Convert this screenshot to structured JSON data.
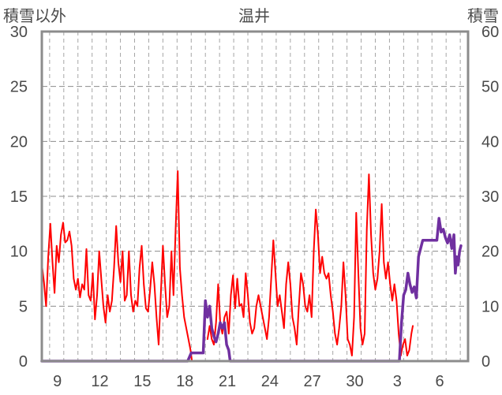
{
  "chart_data": {
    "type": "line",
    "title": "温井",
    "y_left_label": "積雪以外",
    "y_right_label": "積雪",
    "ylim_left": [
      0,
      30
    ],
    "ylim_right": [
      0,
      60
    ],
    "y_left_ticks": [
      "0",
      "5",
      "10",
      "15",
      "20",
      "25",
      "30"
    ],
    "y_right_ticks": [
      "0",
      "10",
      "20",
      "30",
      "40",
      "50",
      "60"
    ],
    "x_tick_labels": [
      "9",
      "12",
      "15",
      "18",
      "21",
      "24",
      "27",
      "30",
      "3",
      "6"
    ],
    "x_tick_positions_day": [
      9,
      12,
      15,
      18,
      21,
      24,
      27,
      30,
      33,
      36
    ],
    "x_range_day": [
      7.9,
      38.0
    ],
    "x_gridlines_day": [
      8.45,
      9.45,
      10.45,
      11.45,
      12.45,
      13.45,
      14.45,
      15.45,
      16.45,
      17.45,
      18.45,
      19.45,
      20.45,
      21.45,
      22.45,
      23.45,
      24.45,
      25.45,
      26.45,
      27.45,
      28.45,
      29.45,
      30.45,
      31.45,
      32.45,
      33.45,
      34.45,
      35.45,
      36.45,
      37.45
    ],
    "grid": true,
    "series": [
      {
        "axis": "left",
        "color": "#ff0000",
        "points": [
          [
            7.9,
            8.8
          ],
          [
            8.05,
            7.2
          ],
          [
            8.2,
            5.0
          ],
          [
            8.35,
            9.5
          ],
          [
            8.5,
            12.5
          ],
          [
            8.65,
            9.0
          ],
          [
            8.8,
            6.2
          ],
          [
            8.95,
            10.5
          ],
          [
            9.1,
            9.0
          ],
          [
            9.25,
            11.5
          ],
          [
            9.4,
            12.6
          ],
          [
            9.55,
            10.8
          ],
          [
            9.7,
            11.0
          ],
          [
            9.85,
            11.8
          ],
          [
            10.0,
            10.5
          ],
          [
            10.15,
            7.5
          ],
          [
            10.3,
            6.5
          ],
          [
            10.45,
            7.5
          ],
          [
            10.6,
            5.8
          ],
          [
            10.75,
            7.0
          ],
          [
            10.9,
            6.5
          ],
          [
            11.05,
            10.2
          ],
          [
            11.2,
            6.0
          ],
          [
            11.35,
            5.5
          ],
          [
            11.5,
            8.0
          ],
          [
            11.65,
            3.8
          ],
          [
            11.8,
            6.0
          ],
          [
            11.95,
            10.0
          ],
          [
            12.1,
            7.5
          ],
          [
            12.25,
            5.0
          ],
          [
            12.4,
            3.5
          ],
          [
            12.55,
            6.0
          ],
          [
            12.7,
            4.5
          ],
          [
            12.85,
            5.5
          ],
          [
            13.0,
            8.5
          ],
          [
            13.15,
            12.3
          ],
          [
            13.3,
            9.0
          ],
          [
            13.45,
            7.2
          ],
          [
            13.6,
            10.0
          ],
          [
            13.75,
            5.5
          ],
          [
            13.9,
            6.0
          ],
          [
            14.05,
            10.0
          ],
          [
            14.2,
            6.0
          ],
          [
            14.35,
            4.5
          ],
          [
            14.5,
            5.5
          ],
          [
            14.65,
            5.0
          ],
          [
            14.8,
            8.5
          ],
          [
            14.95,
            10.5
          ],
          [
            15.1,
            7.0
          ],
          [
            15.25,
            4.8
          ],
          [
            15.4,
            4.5
          ],
          [
            15.55,
            6.5
          ],
          [
            15.7,
            9.0
          ],
          [
            15.85,
            7.0
          ],
          [
            16.0,
            4.0
          ],
          [
            16.15,
            1.5
          ],
          [
            16.3,
            6.0
          ],
          [
            16.45,
            10.5
          ],
          [
            16.6,
            7.0
          ],
          [
            16.75,
            4.0
          ],
          [
            16.9,
            5.0
          ],
          [
            17.05,
            10.0
          ],
          [
            17.2,
            6.0
          ],
          [
            17.35,
            12.0
          ],
          [
            17.5,
            17.3
          ],
          [
            17.65,
            8.5
          ],
          [
            17.8,
            6.0
          ],
          [
            17.95,
            4.0
          ],
          [
            18.1,
            3.0
          ],
          [
            18.25,
            2.0
          ],
          [
            18.4,
            1.0
          ],
          [
            18.5,
            0.0
          ]
        ]
      },
      {
        "axis": "left",
        "color": "#ff0000",
        "points": [
          [
            19.6,
            2.0
          ],
          [
            19.75,
            3.2
          ],
          [
            19.9,
            2.0
          ],
          [
            20.05,
            1.5
          ],
          [
            20.2,
            3.5
          ],
          [
            20.35,
            7.0
          ],
          [
            20.5,
            3.5
          ],
          [
            20.65,
            2.5
          ],
          [
            20.8,
            4.0
          ],
          [
            20.95,
            4.5
          ],
          [
            21.1,
            2.5
          ],
          [
            21.25,
            6.0
          ],
          [
            21.4,
            7.8
          ],
          [
            21.55,
            4.8
          ],
          [
            21.7,
            7.5
          ],
          [
            21.85,
            5.0
          ],
          [
            22.0,
            5.2
          ],
          [
            22.15,
            4.0
          ],
          [
            22.3,
            8.0
          ],
          [
            22.45,
            6.0
          ],
          [
            22.6,
            3.5
          ],
          [
            22.75,
            2.5
          ],
          [
            22.9,
            3.0
          ],
          [
            23.05,
            5.0
          ],
          [
            23.2,
            6.0
          ],
          [
            23.35,
            5.0
          ],
          [
            23.5,
            4.0
          ],
          [
            23.65,
            3.0
          ],
          [
            23.8,
            2.0
          ],
          [
            23.95,
            4.0
          ],
          [
            24.1,
            7.5
          ],
          [
            24.25,
            11.0
          ],
          [
            24.4,
            8.0
          ],
          [
            24.55,
            5.0
          ],
          [
            24.7,
            6.0
          ],
          [
            24.85,
            4.5
          ],
          [
            25.0,
            3.0
          ],
          [
            25.15,
            7.0
          ],
          [
            25.3,
            9.0
          ],
          [
            25.45,
            7.0
          ],
          [
            25.6,
            4.0
          ],
          [
            25.75,
            3.0
          ],
          [
            25.9,
            1.5
          ],
          [
            26.05,
            5.0
          ],
          [
            26.2,
            8.0
          ],
          [
            26.35,
            7.0
          ],
          [
            26.5,
            5.0
          ],
          [
            26.65,
            4.5
          ],
          [
            26.8,
            6.0
          ],
          [
            26.95,
            4.0
          ],
          [
            27.1,
            10.0
          ],
          [
            27.25,
            13.8
          ],
          [
            27.4,
            11.5
          ],
          [
            27.55,
            8.0
          ],
          [
            27.7,
            9.5
          ],
          [
            27.85,
            8.0
          ],
          [
            28.0,
            7.5
          ],
          [
            28.15,
            8.0
          ],
          [
            28.3,
            6.0
          ],
          [
            28.45,
            4.5
          ],
          [
            28.6,
            2.5
          ],
          [
            28.75,
            1.5
          ],
          [
            28.9,
            3.0
          ],
          [
            29.05,
            5.0
          ],
          [
            29.2,
            9.0
          ],
          [
            29.35,
            6.0
          ],
          [
            29.5,
            2.0
          ],
          [
            29.65,
            1.5
          ],
          [
            29.8,
            0.5
          ],
          [
            29.95,
            4.0
          ],
          [
            30.1,
            13.5
          ],
          [
            30.25,
            8.0
          ],
          [
            30.4,
            3.0
          ],
          [
            30.55,
            1.5
          ],
          [
            30.7,
            2.5
          ],
          [
            30.85,
            12.0
          ],
          [
            31.0,
            17.0
          ],
          [
            31.15,
            11.5
          ],
          [
            31.3,
            8.0
          ],
          [
            31.45,
            6.5
          ],
          [
            31.6,
            7.5
          ],
          [
            31.75,
            10.0
          ],
          [
            31.9,
            14.3
          ],
          [
            32.05,
            9.0
          ],
          [
            32.2,
            7.5
          ],
          [
            32.35,
            9.0
          ],
          [
            32.5,
            7.0
          ],
          [
            32.65,
            5.5
          ],
          [
            32.8,
            7.0
          ],
          [
            32.95,
            5.5
          ],
          [
            33.1,
            2.5
          ],
          [
            33.25,
            0.5
          ],
          [
            33.4,
            1.5
          ],
          [
            33.55,
            2.0
          ],
          [
            33.7,
            0.5
          ],
          [
            33.85,
            1.0
          ],
          [
            34.0,
            2.5
          ],
          [
            34.1,
            3.2
          ]
        ]
      },
      {
        "axis": "right",
        "color": "#7030a0",
        "points": [
          [
            7.9,
            0
          ],
          [
            18.2,
            0
          ],
          [
            18.45,
            1.5
          ],
          [
            19.3,
            1.5
          ],
          [
            19.45,
            11.0
          ],
          [
            19.6,
            8.0
          ],
          [
            19.75,
            10.0
          ],
          [
            19.9,
            6.0
          ],
          [
            20.05,
            4.5
          ],
          [
            20.2,
            3.5
          ],
          [
            20.35,
            5.0
          ],
          [
            20.5,
            7.0
          ],
          [
            20.65,
            6.0
          ],
          [
            20.8,
            7.0
          ],
          [
            20.95,
            3.0
          ],
          [
            21.1,
            2.0
          ],
          [
            21.2,
            0
          ],
          [
            33.15,
            0
          ],
          [
            33.3,
            7.0
          ],
          [
            33.45,
            12.0
          ],
          [
            33.6,
            13.0
          ],
          [
            33.75,
            16.0
          ],
          [
            33.9,
            14.0
          ],
          [
            34.05,
            12.5
          ],
          [
            34.2,
            13.5
          ],
          [
            34.35,
            11.5
          ],
          [
            34.5,
            19.0
          ],
          [
            34.6,
            20.0
          ],
          [
            34.65,
            20.5
          ],
          [
            34.8,
            22.0
          ],
          [
            35.8,
            22.0
          ],
          [
            35.95,
            26.0
          ],
          [
            36.1,
            23.5
          ],
          [
            36.25,
            24.0
          ],
          [
            36.4,
            22.5
          ],
          [
            36.55,
            21.5
          ],
          [
            36.7,
            23.0
          ],
          [
            36.85,
            20.5
          ],
          [
            37.0,
            23.0
          ],
          [
            37.1,
            16.0
          ],
          [
            37.2,
            19.0
          ],
          [
            37.3,
            17.5
          ],
          [
            37.4,
            20.0
          ],
          [
            37.5,
            21.0
          ]
        ]
      }
    ]
  }
}
